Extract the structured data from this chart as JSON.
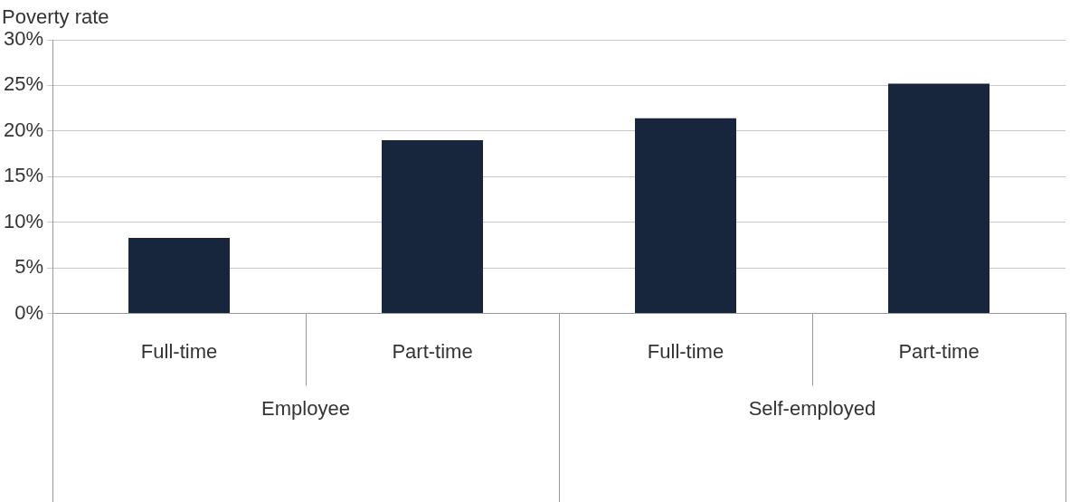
{
  "chart_data": {
    "type": "bar",
    "ylabel": "Poverty rate",
    "categories": [
      "Full-time",
      "Part-time",
      "Full-time",
      "Part-time"
    ],
    "values": [
      8.3,
      19.0,
      21.4,
      25.2
    ],
    "color": "#17253d",
    "ylim": [
      0,
      30
    ],
    "yticks": [
      {
        "value": 0,
        "label": "0%"
      },
      {
        "value": 5,
        "label": "5%"
      },
      {
        "value": 10,
        "label": "10%"
      },
      {
        "value": 15,
        "label": "15%"
      },
      {
        "value": 20,
        "label": "20%"
      },
      {
        "value": 25,
        "label": "25%"
      },
      {
        "value": 30,
        "label": "30%"
      }
    ],
    "grid": "y",
    "legend": false,
    "annotations": [
      "Employee",
      "Self-employed"
    ]
  }
}
